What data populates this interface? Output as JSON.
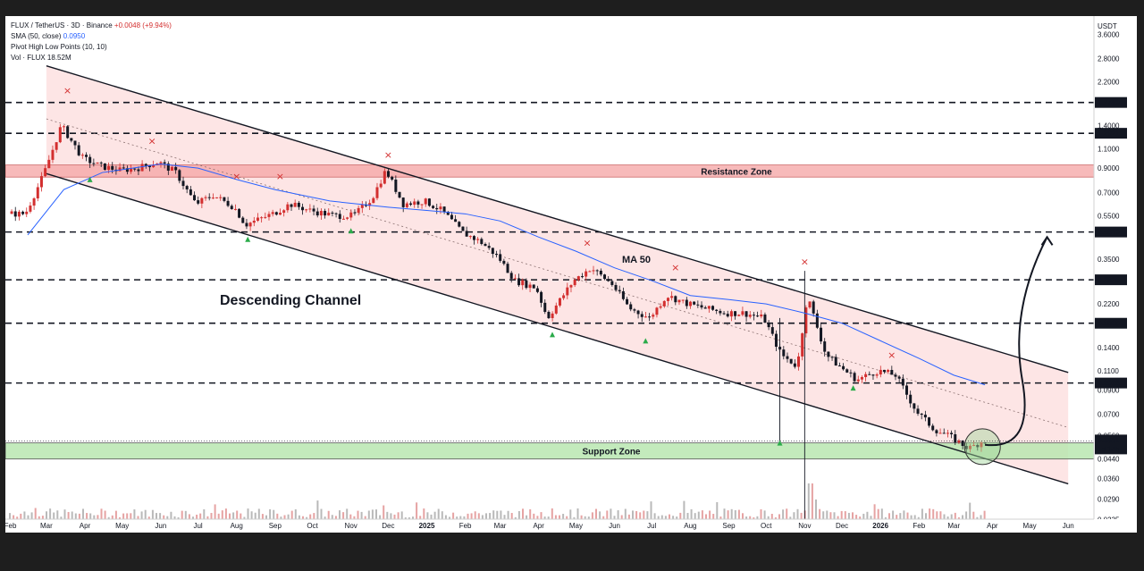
{
  "legend": {
    "symbol": "FLUX / TetherUS · 3D · Binance",
    "change": "+0.0048 (+9.94%)",
    "sma_label": "SMA (50, close)",
    "sma_value": "0.0950",
    "pivot_label": "Pivot High Low Points (10, 10)",
    "vol_label": "Vol · FLUX",
    "vol_value": "18.52M"
  },
  "currency": "USDT",
  "colors": {
    "up": "#d32f2f",
    "down": "#131722",
    "ma": "#2962ff",
    "resistance": "#f4a3a3",
    "support": "#b8e6b0",
    "channel": "#fde0e0",
    "pivot_high": "#d32f2f",
    "pivot_low": "#2bab4a"
  },
  "annotations": {
    "channel_title": "Descending Channel",
    "ma_label": "MA 50",
    "resistance_label": "Resistance Zone",
    "support_label": "Support Zone",
    "current_price": "0.0531",
    "countdown": "1d 14h"
  },
  "chart_data": {
    "type": "candlestick",
    "scale": "log",
    "y_ticks": [
      "3.6000",
      "2.8000",
      "2.2000",
      "1.4000",
      "1.1000",
      "0.9000",
      "0.7000",
      "0.5500",
      "0.3500",
      "0.2200",
      "0.1400",
      "0.1100",
      "0.0900",
      "0.0700",
      "0.0560",
      "0.0440",
      "0.0360",
      "0.0290",
      "0.0235"
    ],
    "level_labels": [
      "1.7789",
      "1.2921",
      "0.4639",
      "0.2825",
      "0.1800",
      "0.0968"
    ],
    "x_ticks": [
      "Feb",
      "Mar",
      "Apr",
      "May",
      "Jun",
      "Jul",
      "Aug",
      "Sep",
      "Oct",
      "Nov",
      "Dec",
      "2025",
      "Feb",
      "Mar",
      "Apr",
      "May",
      "Jun",
      "Jul",
      "Aug",
      "Sep",
      "Oct",
      "Nov",
      "Dec",
      "2026",
      "Feb",
      "Mar",
      "Apr",
      "May",
      "Jun"
    ],
    "price_path": [
      [
        "2024-02-15",
        0.56
      ],
      [
        "2024-03-01",
        0.85
      ],
      [
        "2024-03-15",
        1.4
      ],
      [
        "2024-04-01",
        1.0
      ],
      [
        "2024-04-15",
        0.92
      ],
      [
        "2024-05-01",
        0.88
      ],
      [
        "2024-05-15",
        0.9
      ],
      [
        "2024-06-01",
        0.96
      ],
      [
        "2024-06-15",
        0.86
      ],
      [
        "2024-07-01",
        0.62
      ],
      [
        "2024-07-15",
        0.68
      ],
      [
        "2024-08-01",
        0.6
      ],
      [
        "2024-08-10",
        0.5
      ],
      [
        "2024-09-01",
        0.56
      ],
      [
        "2024-09-15",
        0.62
      ],
      [
        "2024-10-01",
        0.58
      ],
      [
        "2024-10-20",
        0.55
      ],
      [
        "2024-11-05",
        0.55
      ],
      [
        "2024-11-20",
        0.66
      ],
      [
        "2024-12-01",
        0.88
      ],
      [
        "2024-12-15",
        0.62
      ],
      [
        "2025-01-01",
        0.64
      ],
      [
        "2025-01-15",
        0.58
      ],
      [
        "2025-02-01",
        0.46
      ],
      [
        "2025-02-15",
        0.42
      ],
      [
        "2025-03-01",
        0.36
      ],
      [
        "2025-03-15",
        0.28
      ],
      [
        "2025-04-01",
        0.26
      ],
      [
        "2025-04-10",
        0.19
      ],
      [
        "2025-05-01",
        0.28
      ],
      [
        "2025-05-15",
        0.32
      ],
      [
        "2025-06-01",
        0.27
      ],
      [
        "2025-06-15",
        0.21
      ],
      [
        "2025-07-01",
        0.19
      ],
      [
        "2025-07-15",
        0.24
      ],
      [
        "2025-08-01",
        0.22
      ],
      [
        "2025-08-15",
        0.21
      ],
      [
        "2025-09-01",
        0.2
      ],
      [
        "2025-09-15",
        0.2
      ],
      [
        "2025-10-01",
        0.19
      ],
      [
        "2025-10-15",
        0.13
      ],
      [
        "2025-10-28",
        0.115
      ],
      [
        "2025-11-05",
        0.24
      ],
      [
        "2025-11-20",
        0.13
      ],
      [
        "2025-12-01",
        0.115
      ],
      [
        "2025-12-15",
        0.1
      ],
      [
        "2026-01-01",
        0.11
      ],
      [
        "2026-01-15",
        0.105
      ],
      [
        "2026-02-01",
        0.072
      ],
      [
        "2026-02-15",
        0.06
      ],
      [
        "2026-03-01",
        0.055
      ],
      [
        "2026-03-15",
        0.049
      ],
      [
        "2026-03-26",
        0.0531
      ]
    ],
    "sma_50": [
      [
        "2024-02-15",
        0.45
      ],
      [
        "2024-03-15",
        0.72
      ],
      [
        "2024-04-15",
        0.86
      ],
      [
        "2024-06-01",
        0.94
      ],
      [
        "2024-07-01",
        0.9
      ],
      [
        "2024-08-01",
        0.8
      ],
      [
        "2024-09-01",
        0.72
      ],
      [
        "2024-10-15",
        0.64
      ],
      [
        "2024-12-01",
        0.6
      ],
      [
        "2025-01-01",
        0.58
      ],
      [
        "2025-02-01",
        0.56
      ],
      [
        "2025-03-01",
        0.52
      ],
      [
        "2025-04-01",
        0.44
      ],
      [
        "2025-05-01",
        0.38
      ],
      [
        "2025-06-01",
        0.32
      ],
      [
        "2025-07-01",
        0.28
      ],
      [
        "2025-08-01",
        0.24
      ],
      [
        "2025-09-01",
        0.23
      ],
      [
        "2025-10-01",
        0.22
      ],
      [
        "2025-11-01",
        0.2
      ],
      [
        "2025-12-01",
        0.18
      ],
      [
        "2026-01-01",
        0.15
      ],
      [
        "2026-02-01",
        0.125
      ],
      [
        "2026-03-01",
        0.105
      ],
      [
        "2026-03-26",
        0.095
      ]
    ],
    "pivot_highs": [
      [
        "2024-03-18",
        1.95
      ],
      [
        "2024-05-25",
        1.15
      ],
      [
        "2024-08-01",
        0.8
      ],
      [
        "2024-09-05",
        0.8
      ],
      [
        "2024-12-01",
        1.0
      ],
      [
        "2025-05-10",
        0.4
      ],
      [
        "2025-07-20",
        0.31
      ],
      [
        "2025-11-01",
        0.33
      ],
      [
        "2026-01-10",
        0.125
      ]
    ],
    "pivot_lows": [
      [
        "2024-04-05",
        0.8
      ],
      [
        "2024-08-10",
        0.43
      ],
      [
        "2024-11-01",
        0.47
      ],
      [
        "2025-04-12",
        0.16
      ],
      [
        "2025-06-26",
        0.15
      ],
      [
        "2025-10-12",
        0.052
      ],
      [
        "2025-12-10",
        0.092
      ]
    ],
    "levels": [
      1.7789,
      1.2921,
      0.4639,
      0.2825,
      0.18,
      0.0968
    ],
    "resistance_zone": [
      0.82,
      0.93
    ],
    "support_zone": [
      0.044,
      0.052
    ],
    "channel_upper": [
      [
        "2024-03-01",
        2.6
      ],
      [
        "2026-06-01",
        0.108
      ]
    ],
    "channel_lower": [
      [
        "2024-03-01",
        0.85
      ],
      [
        "2026-06-01",
        0.034
      ]
    ],
    "channel_mid": [
      [
        "2024-03-01",
        1.5
      ],
      [
        "2026-06-01",
        0.061
      ]
    ],
    "projection": [
      [
        "2026-03-26",
        0.051
      ],
      [
        "2026-04-25",
        0.1
      ],
      [
        "2026-05-15",
        0.44
      ]
    ],
    "ylim": [
      0.0225,
      3.9
    ]
  }
}
